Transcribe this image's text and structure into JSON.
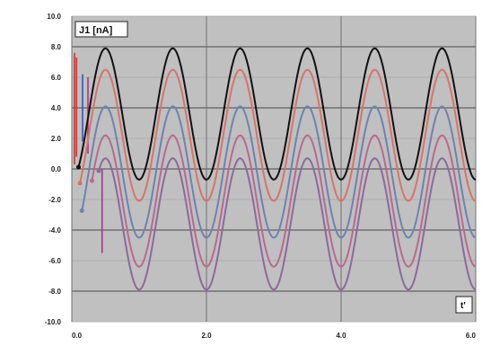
{
  "chart_data": {
    "type": "line",
    "series_label": "J1 [nA]",
    "x_axis_label": "t'",
    "x_tick_labels": [
      "0.0",
      "2.0",
      "4.0",
      "6.0"
    ],
    "y_tick_labels": [
      "10.0",
      "8.0",
      "6.0",
      "4.0",
      "2.0",
      "0.0",
      "-2.0",
      "-4.0",
      "-6.0",
      "-8.0",
      "-10.0"
    ],
    "xlim": [
      0,
      6
    ],
    "ylim": [
      -10,
      10
    ],
    "grid": true,
    "plot_background": "#c0c0c0",
    "series": [
      {
        "color": "#111111",
        "offset": 3.6,
        "amplitude": 4.3,
        "period": 1.0,
        "start": 0.1
      },
      {
        "color": "#d7746a",
        "offset": 2.2,
        "amplitude": 4.3,
        "period": 1.0,
        "start": 0.12
      },
      {
        "color": "#6b84b0",
        "offset": -0.2,
        "amplitude": 4.3,
        "period": 1.0,
        "start": 0.15
      },
      {
        "color": "#b86a8e",
        "offset": -2.1,
        "amplitude": 4.3,
        "period": 1.0,
        "start": 0.3
      },
      {
        "color": "#8c6a9a",
        "offset": -3.6,
        "amplitude": 4.3,
        "period": 1.0,
        "start": 0.4
      }
    ],
    "transients": [
      {
        "color": "#cc3333",
        "x": 0.04,
        "y_from": 0.3,
        "y_to": 7.6
      },
      {
        "color": "#cc3333",
        "x": 0.07,
        "y_from": 0.8,
        "y_to": 7.3
      },
      {
        "color": "#3355bb",
        "x": 0.16,
        "y_from": 1.8,
        "y_to": 6.2
      },
      {
        "color": "#aa3388",
        "x": 0.24,
        "y_from": 1.0,
        "y_to": 6.0
      },
      {
        "color": "#aa3388",
        "x": 0.45,
        "y_from": -5.5,
        "y_to": 0.0
      }
    ]
  }
}
